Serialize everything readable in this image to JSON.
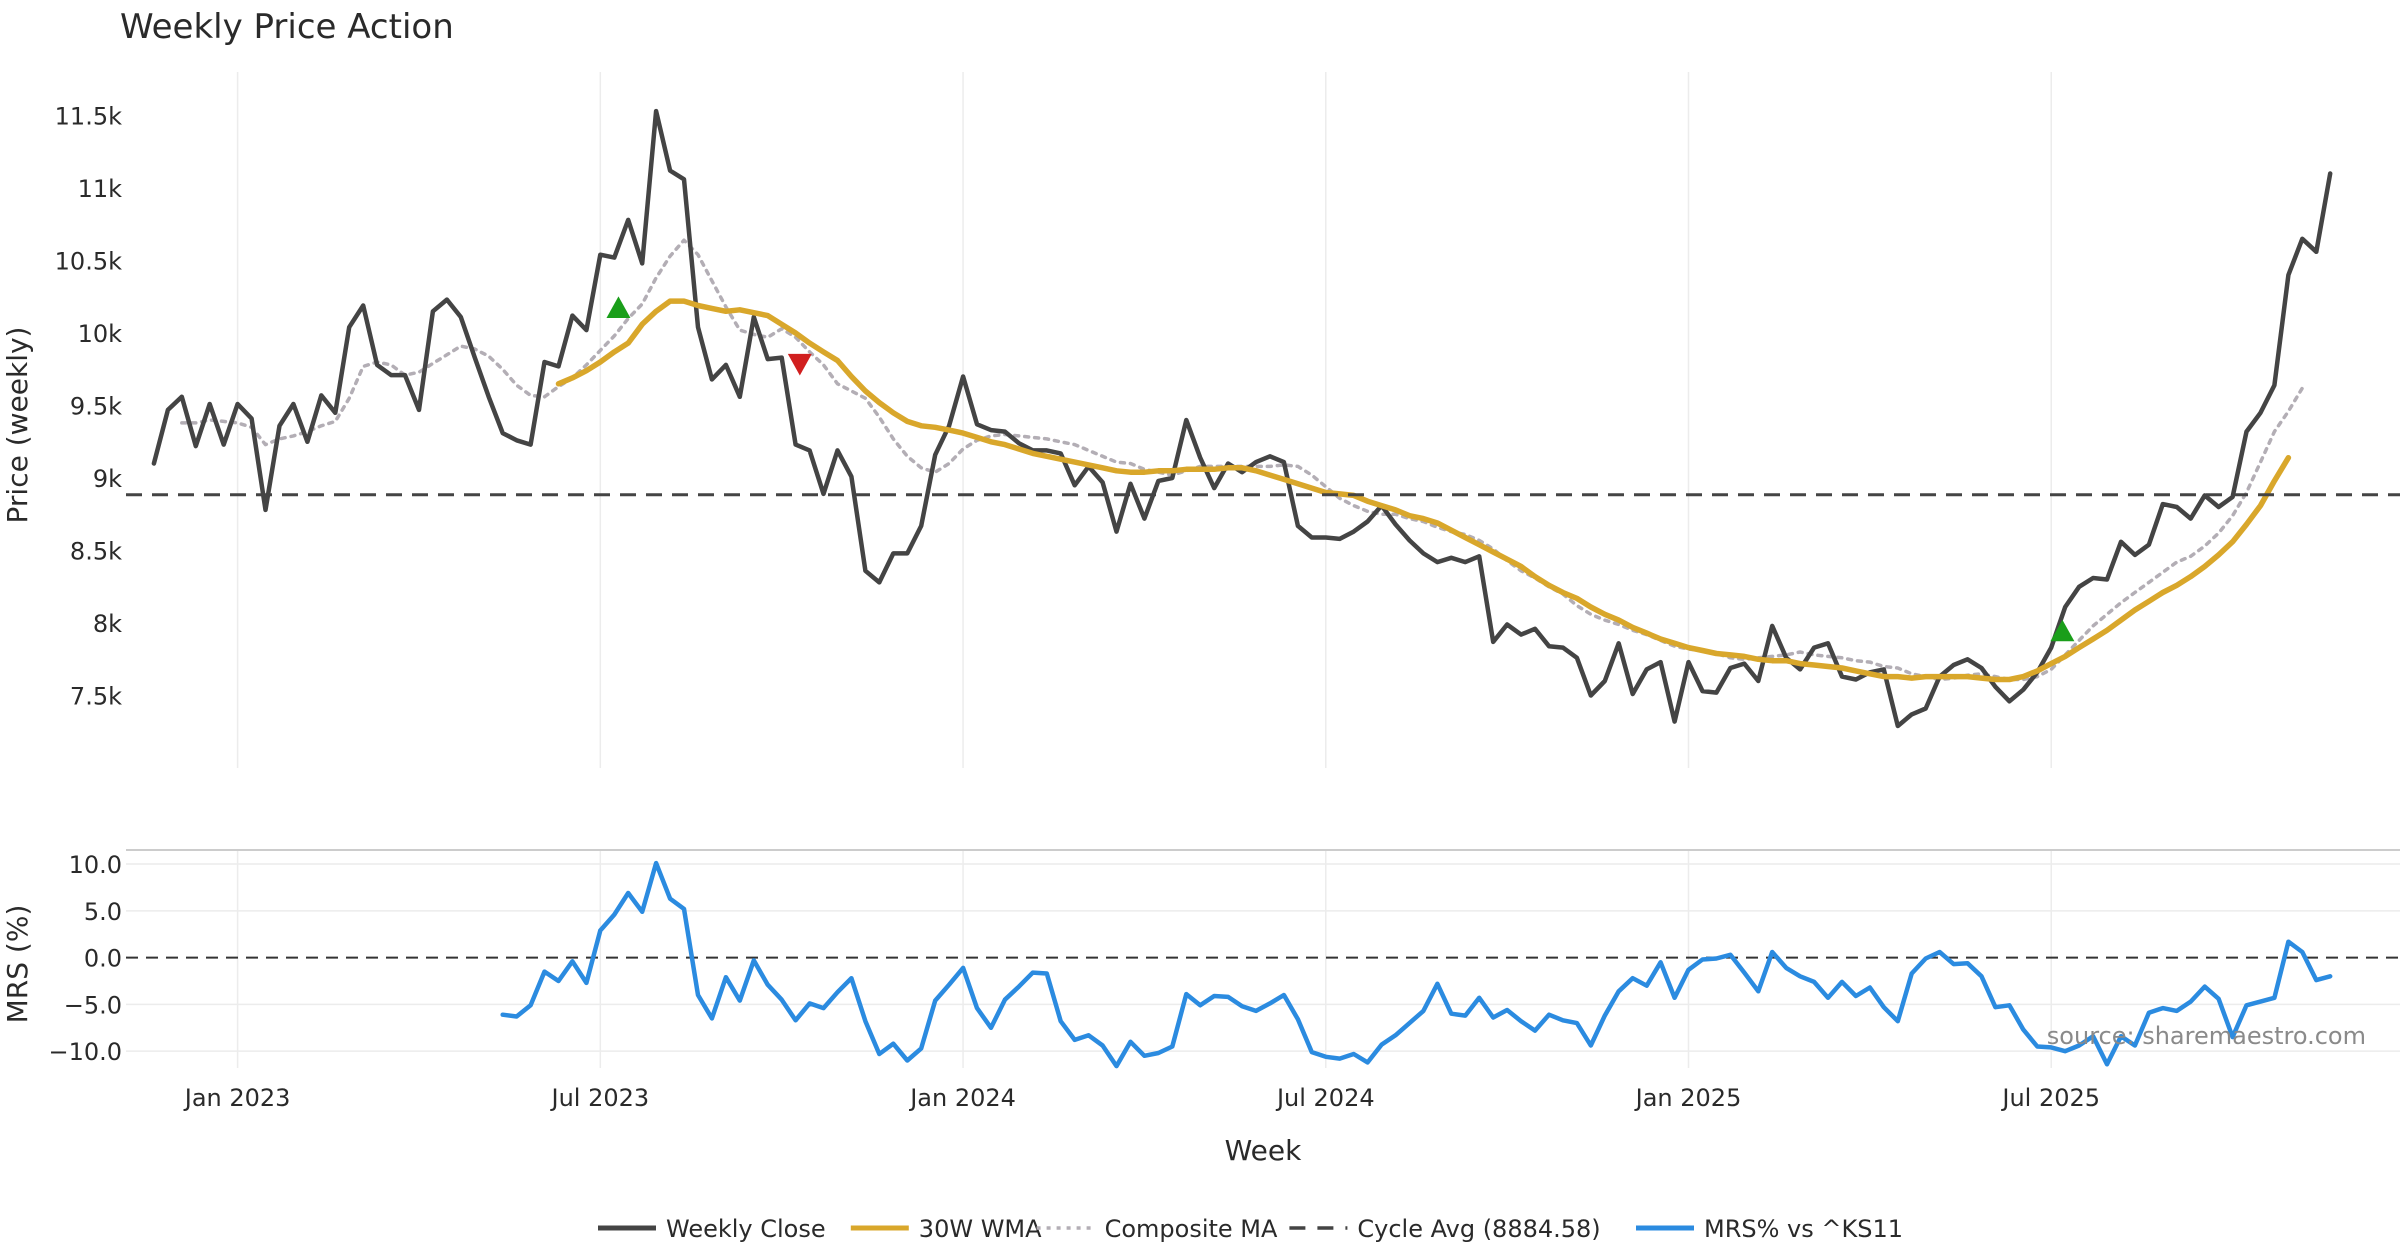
{
  "chart_data": {
    "type": "line",
    "title": "Weekly Price Action",
    "source": "source: sharemaestro.com",
    "xlabel": "Week",
    "x_ticks": [
      {
        "label": "Jan 2023",
        "week": 6
      },
      {
        "label": "Jul 2023",
        "week": 32
      },
      {
        "label": "Jan 2024",
        "week": 58
      },
      {
        "label": "Jul 2024",
        "week": 84
      },
      {
        "label": "Jan 2025",
        "week": 110
      },
      {
        "label": "Jul 2025",
        "week": 136
      }
    ],
    "x_range": [
      -2,
      161
    ],
    "price_panel": {
      "ylabel": "Price (weekly)",
      "ylim": [
        7000,
        11800
      ],
      "y_ticks": [
        {
          "label": "11.5k",
          "value": 11500
        },
        {
          "label": "11k",
          "value": 11000
        },
        {
          "label": "10.5k",
          "value": 10500
        },
        {
          "label": "10k",
          "value": 10000
        },
        {
          "label": "9.5k",
          "value": 9500
        },
        {
          "label": "9k",
          "value": 9000
        },
        {
          "label": "8.5k",
          "value": 8500
        },
        {
          "label": "8k",
          "value": 8000
        },
        {
          "label": "7.5k",
          "value": 7500
        }
      ],
      "cycle_avg": 8884.58,
      "series": [
        {
          "name": "Weekly Close",
          "color": "#444444",
          "style": "solid",
          "x_start": 0,
          "values": [
            9100,
            9470,
            9560,
            9220,
            9510,
            9230,
            9510,
            9410,
            8780,
            9360,
            9510,
            9250,
            9570,
            9450,
            10040,
            10190,
            9780,
            9710,
            9710,
            9470,
            10150,
            10230,
            10110,
            9830,
            9560,
            9310,
            9260,
            9230,
            9800,
            9770,
            10120,
            10020,
            10540,
            10520,
            10780,
            10480,
            11530,
            11120,
            11060,
            10040,
            9680,
            9780,
            9560,
            10110,
            9820,
            9830,
            9230,
            9190,
            8890,
            9190,
            9010,
            8360,
            8280,
            8480,
            8480,
            8670,
            9160,
            9360,
            9700,
            9370,
            9330,
            9320,
            9240,
            9190,
            9190,
            9170,
            8950,
            9080,
            8970,
            8630,
            8960,
            8720,
            8980,
            9000,
            9400,
            9140,
            8930,
            9100,
            9040,
            9110,
            9150,
            9110,
            8670,
            8590,
            8590,
            8580,
            8630,
            8700,
            8810,
            8680,
            8570,
            8480,
            8420,
            8450,
            8420,
            8460,
            7870,
            7990,
            7920,
            7960,
            7840,
            7830,
            7760,
            7500,
            7600,
            7860,
            7510,
            7680,
            7730,
            7320,
            7730,
            7530,
            7520,
            7690,
            7720,
            7600,
            7980,
            7760,
            7680,
            7830,
            7860,
            7630,
            7610,
            7660,
            7680,
            7290,
            7370,
            7410,
            7630,
            7710,
            7750,
            7690,
            7560,
            7460,
            7540,
            7660,
            7830,
            8110,
            8250,
            8310,
            8300,
            8560,
            8470,
            8540,
            8820,
            8800,
            8720,
            8880,
            8800,
            8870,
            9320,
            9450,
            9640,
            10400,
            10650,
            10560,
            11100
          ]
        },
        {
          "name": "30W WMA",
          "color": "#d9a72b",
          "style": "solid",
          "x_start": 29,
          "values": [
            9650,
            9690,
            9740,
            9800,
            9870,
            9930,
            10060,
            10150,
            10220,
            10220,
            10190,
            10170,
            10150,
            10160,
            10140,
            10120,
            10060,
            10000,
            9930,
            9870,
            9810,
            9700,
            9600,
            9520,
            9450,
            9390,
            9360,
            9350,
            9330,
            9310,
            9280,
            9250,
            9230,
            9200,
            9170,
            9150,
            9130,
            9110,
            9090,
            9070,
            9050,
            9040,
            9040,
            9050,
            9050,
            9060,
            9060,
            9060,
            9070,
            9070,
            9050,
            9020,
            8990,
            8960,
            8930,
            8900,
            8890,
            8880,
            8840,
            8810,
            8780,
            8740,
            8720,
            8690,
            8640,
            8590,
            8540,
            8490,
            8440,
            8390,
            8320,
            8260,
            8210,
            8170,
            8110,
            8060,
            8020,
            7970,
            7930,
            7890,
            7860,
            7830,
            7810,
            7790,
            7780,
            7770,
            7750,
            7740,
            7740,
            7720,
            7710,
            7700,
            7690,
            7670,
            7650,
            7630,
            7630,
            7620,
            7630,
            7630,
            7630,
            7630,
            7620,
            7610,
            7610,
            7630,
            7670,
            7720,
            7770,
            7830,
            7890,
            7950,
            8020,
            8090,
            8150,
            8210,
            8260,
            8320,
            8390,
            8470,
            8560,
            8680,
            8810,
            8980,
            9140
          ]
        },
        {
          "name": "Composite MA",
          "color": "#b3aeb5",
          "style": "dotted",
          "x_start": 2,
          "values": [
            9380,
            9380,
            9400,
            9390,
            9380,
            9350,
            9230,
            9270,
            9290,
            9320,
            9360,
            9390,
            9550,
            9770,
            9800,
            9780,
            9710,
            9730,
            9790,
            9850,
            9910,
            9890,
            9840,
            9750,
            9640,
            9570,
            9560,
            9630,
            9690,
            9780,
            9880,
            9980,
            10100,
            10200,
            10380,
            10530,
            10640,
            10540,
            10360,
            10180,
            10020,
            9990,
            9970,
            10030,
            9970,
            9870,
            9780,
            9650,
            9600,
            9550,
            9420,
            9270,
            9150,
            9070,
            9040,
            9100,
            9200,
            9260,
            9290,
            9300,
            9290,
            9280,
            9270,
            9250,
            9230,
            9190,
            9150,
            9110,
            9100,
            9060,
            9040,
            9020,
            9050,
            9080,
            9080,
            9080,
            9080,
            9080,
            9080,
            9090,
            9080,
            9020,
            8940,
            8860,
            8810,
            8770,
            8750,
            8750,
            8720,
            8700,
            8660,
            8630,
            8610,
            8570,
            8510,
            8430,
            8360,
            8310,
            8250,
            8200,
            8120,
            8060,
            8020,
            7990,
            7950,
            7920,
            7880,
            7840,
            7820,
            7810,
            7790,
            7760,
            7750,
            7760,
            7770,
            7780,
            7800,
            7780,
            7770,
            7760,
            7740,
            7730,
            7700,
            7690,
            7650,
            7630,
            7610,
            7620,
            7640,
            7650,
            7630,
            7610,
            7610,
            7630,
            7680,
            7780,
            7880,
            7980,
            8060,
            8140,
            8210,
            8280,
            8350,
            8420,
            8460,
            8530,
            8620,
            8740,
            8900,
            9110,
            9320,
            9460,
            9620
          ]
        }
      ],
      "markers": [
        {
          "type": "buy",
          "shape": "triangle-up",
          "color": "#1a9e1a",
          "x": 33.3,
          "y": 10170
        },
        {
          "type": "sell",
          "shape": "triangle-down",
          "color": "#d11f1f",
          "x": 46.3,
          "y": 9790
        },
        {
          "type": "buy",
          "shape": "triangle-up",
          "color": "#1a9e1a",
          "x": 136.8,
          "y": 7940
        }
      ]
    },
    "mrs_panel": {
      "ylabel": "MRS (%)",
      "ylim": [
        -11.8,
        11.5
      ],
      "y_ticks": [
        {
          "label": "10.0",
          "value": 10
        },
        {
          "label": "5.0",
          "value": 5
        },
        {
          "label": "0.0",
          "value": 0
        },
        {
          "label": "−5.0",
          "value": -5
        },
        {
          "label": "−10.0",
          "value": -10
        }
      ],
      "zero_line": 0,
      "series": [
        {
          "name": "MRS% vs ^KS11",
          "color": "#2b8be0",
          "style": "solid",
          "x_start": 25,
          "values": [
            -6.1,
            -6.3,
            -5.1,
            -1.5,
            -2.5,
            -0.4,
            -2.7,
            2.9,
            4.6,
            6.9,
            4.9,
            10.1,
            6.3,
            5.2,
            -4.0,
            -6.5,
            -2.1,
            -4.6,
            -0.3,
            -2.9,
            -4.5,
            -6.7,
            -4.9,
            -5.4,
            -3.7,
            -2.2,
            -6.8,
            -10.3,
            -9.2,
            -11.0,
            -9.7,
            -4.6,
            -2.9,
            -1.1,
            -5.4,
            -7.5,
            -4.5,
            -3.1,
            -1.6,
            -1.7,
            -6.8,
            -8.8,
            -8.3,
            -9.4,
            -11.6,
            -9.0,
            -10.5,
            -10.2,
            -9.5,
            -3.9,
            -5.1,
            -4.1,
            -4.2,
            -5.2,
            -5.7,
            -4.9,
            -4.0,
            -6.6,
            -10.1,
            -10.6,
            -10.8,
            -10.3,
            -11.2,
            -9.3,
            -8.3,
            -7.0,
            -5.7,
            -2.8,
            -6.0,
            -6.2,
            -4.3,
            -6.4,
            -5.6,
            -6.8,
            -7.8,
            -6.1,
            -6.7,
            -7.0,
            -9.4,
            -6.2,
            -3.6,
            -2.2,
            -3.0,
            -0.5,
            -4.3,
            -1.3,
            -0.2,
            -0.1,
            0.3,
            -1.6,
            -3.6,
            0.6,
            -1.1,
            -2.0,
            -2.6,
            -4.3,
            -2.6,
            -4.1,
            -3.2,
            -5.3,
            -6.8,
            -1.7,
            -0.1,
            0.6,
            -0.7,
            -0.6,
            -2.0,
            -5.3,
            -5.1,
            -7.7,
            -9.5,
            -9.6,
            -10.0,
            -9.4,
            -8.4,
            -11.4,
            -8.4,
            -9.4,
            -5.9,
            -5.4,
            -5.7,
            -4.7,
            -3.1,
            -4.4,
            -8.5,
            -5.1,
            -4.7,
            -4.3,
            1.7,
            0.6,
            -2.4,
            -2.0
          ]
        }
      ]
    },
    "legend": [
      {
        "label": "Weekly Close",
        "color": "#444444",
        "style": "solid"
      },
      {
        "label": "30W WMA",
        "color": "#d9a72b",
        "style": "solid"
      },
      {
        "label": "Composite MA",
        "color": "#b3aeb5",
        "style": "dotted"
      },
      {
        "label": "Cycle Avg (8884.58)",
        "color": "#444444",
        "style": "dashed"
      },
      {
        "label": "MRS% vs ^KS11",
        "color": "#2b8be0",
        "style": "solid"
      }
    ]
  }
}
